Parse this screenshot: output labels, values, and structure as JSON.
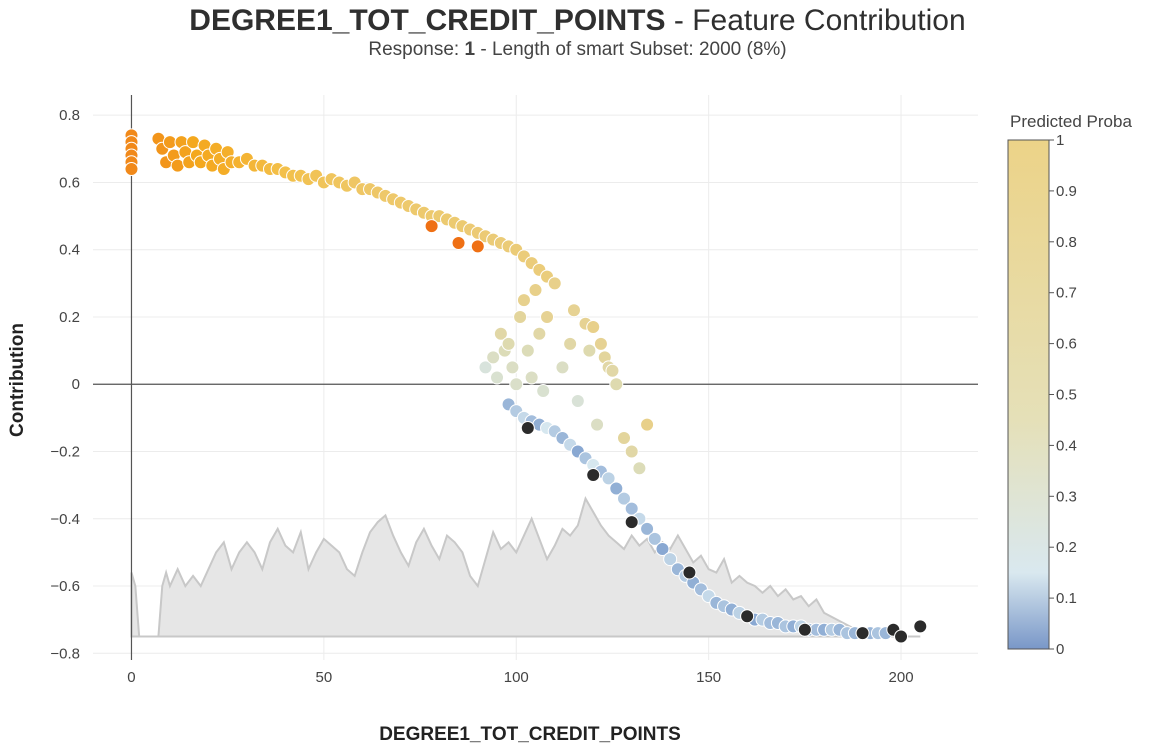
{
  "title": {
    "variable": "DEGREE1_TOT_CREDIT_POINTS",
    "suffix": " - Feature Contribution"
  },
  "subtitle": {
    "prefix": "Response: ",
    "response": "1",
    "suffix": " - Length of smart Subset: 2000 (8%)"
  },
  "chart_data": {
    "type": "scatter",
    "xlabel": "DEGREE1_TOT_CREDIT_POINTS",
    "ylabel": "Contribution",
    "xlim": [
      -10,
      220
    ],
    "ylim": [
      -0.82,
      0.86
    ],
    "xticks": [
      0,
      50,
      100,
      150,
      200
    ],
    "yticks": [
      -0.8,
      -0.6,
      -0.4,
      -0.2,
      0,
      0.2,
      0.4,
      0.6,
      0.8
    ],
    "ytick_labels": [
      "−0.8",
      "−0.6",
      "−0.4",
      "−0.2",
      "0",
      "0.2",
      "0.4",
      "0.6",
      "0.8"
    ],
    "grid": true,
    "colorbar": {
      "title": "Predicted Proba",
      "range": [
        0,
        1
      ],
      "ticks": [
        "0",
        "0.1",
        "0.2",
        "0.3",
        "0.4",
        "0.5",
        "0.6",
        "0.7",
        "0.8",
        "0.9",
        "1"
      ],
      "colors": [
        "#6b8fc6",
        "#d8e8f0",
        "#e6d38f",
        "#f0ce7a",
        "#f5a20c",
        "#f07818",
        "#2e2e2e"
      ]
    },
    "distribution_curve": {
      "description": "grey density area of the feature values",
      "x": [
        0,
        1,
        2,
        3,
        5,
        7,
        8,
        9,
        10,
        12,
        14,
        16,
        18,
        20,
        22,
        24,
        26,
        28,
        30,
        32,
        34,
        36,
        38,
        40,
        42,
        44,
        46,
        48,
        50,
        52,
        54,
        56,
        58,
        60,
        62,
        64,
        66,
        68,
        70,
        72,
        74,
        76,
        78,
        80,
        82,
        84,
        86,
        88,
        90,
        92,
        94,
        96,
        98,
        100,
        102,
        104,
        106,
        108,
        110,
        112,
        114,
        116,
        118,
        120,
        122,
        124,
        126,
        128,
        130,
        132,
        134,
        136,
        138,
        140,
        142,
        144,
        146,
        148,
        150,
        152,
        154,
        156,
        158,
        160,
        162,
        164,
        166,
        168,
        170,
        172,
        174,
        176,
        178,
        180,
        185,
        190,
        195,
        200,
        205
      ],
      "y": [
        -0.56,
        -0.6,
        -0.75,
        -0.75,
        -0.75,
        -0.75,
        -0.6,
        -0.56,
        -0.6,
        -0.55,
        -0.6,
        -0.57,
        -0.6,
        -0.55,
        -0.5,
        -0.47,
        -0.55,
        -0.5,
        -0.47,
        -0.5,
        -0.55,
        -0.47,
        -0.43,
        -0.48,
        -0.5,
        -0.44,
        -0.55,
        -0.5,
        -0.46,
        -0.48,
        -0.5,
        -0.55,
        -0.57,
        -0.5,
        -0.44,
        -0.41,
        -0.39,
        -0.45,
        -0.5,
        -0.54,
        -0.47,
        -0.43,
        -0.48,
        -0.52,
        -0.45,
        -0.47,
        -0.5,
        -0.57,
        -0.6,
        -0.52,
        -0.44,
        -0.49,
        -0.47,
        -0.5,
        -0.45,
        -0.4,
        -0.46,
        -0.52,
        -0.48,
        -0.43,
        -0.45,
        -0.42,
        -0.34,
        -0.38,
        -0.42,
        -0.45,
        -0.47,
        -0.49,
        -0.45,
        -0.48,
        -0.46,
        -0.5,
        -0.47,
        -0.49,
        -0.45,
        -0.49,
        -0.53,
        -0.51,
        -0.55,
        -0.56,
        -0.52,
        -0.59,
        -0.57,
        -0.59,
        -0.6,
        -0.62,
        -0.6,
        -0.63,
        -0.61,
        -0.64,
        -0.63,
        -0.66,
        -0.64,
        -0.68,
        -0.71,
        -0.74,
        -0.74,
        -0.75,
        -0.75
      ]
    },
    "series": [
      {
        "description": "orange / yellow points (high predicted proba, positive contributions)",
        "x": [
          0,
          0,
          0,
          0,
          0,
          0,
          7,
          8,
          9,
          10,
          11,
          12,
          13,
          14,
          15,
          16,
          17,
          18,
          19,
          20,
          21,
          22,
          23,
          24,
          25,
          26,
          28,
          30,
          32,
          34,
          36,
          38,
          40,
          42,
          44,
          46,
          48,
          50,
          52,
          54,
          56,
          58,
          60,
          62,
          64,
          66,
          68,
          70,
          72,
          74,
          76,
          78,
          80,
          82,
          84,
          86,
          88,
          90,
          92,
          94,
          96,
          98,
          100,
          102,
          104,
          106,
          108,
          110,
          78,
          85,
          90
        ],
        "y": [
          0.74,
          0.72,
          0.7,
          0.68,
          0.66,
          0.64,
          0.73,
          0.7,
          0.66,
          0.72,
          0.68,
          0.65,
          0.72,
          0.69,
          0.66,
          0.72,
          0.68,
          0.66,
          0.71,
          0.68,
          0.65,
          0.7,
          0.67,
          0.64,
          0.69,
          0.66,
          0.66,
          0.67,
          0.65,
          0.65,
          0.64,
          0.64,
          0.63,
          0.62,
          0.62,
          0.61,
          0.62,
          0.6,
          0.61,
          0.6,
          0.59,
          0.6,
          0.58,
          0.58,
          0.57,
          0.56,
          0.55,
          0.54,
          0.53,
          0.52,
          0.51,
          0.5,
          0.5,
          0.49,
          0.48,
          0.47,
          0.46,
          0.45,
          0.44,
          0.43,
          0.42,
          0.41,
          0.4,
          0.38,
          0.36,
          0.34,
          0.32,
          0.3,
          0.47,
          0.42,
          0.41
        ],
        "color_values": [
          0.95,
          0.95,
          0.95,
          0.95,
          0.95,
          0.95,
          0.93,
          0.93,
          0.93,
          0.92,
          0.92,
          0.92,
          0.91,
          0.91,
          0.91,
          0.9,
          0.9,
          0.9,
          0.89,
          0.89,
          0.89,
          0.88,
          0.88,
          0.88,
          0.87,
          0.87,
          0.86,
          0.85,
          0.84,
          0.83,
          0.82,
          0.81,
          0.8,
          0.79,
          0.78,
          0.77,
          0.76,
          0.75,
          0.74,
          0.74,
          0.73,
          0.72,
          0.72,
          0.71,
          0.71,
          0.7,
          0.7,
          0.7,
          0.69,
          0.69,
          0.69,
          0.69,
          0.68,
          0.68,
          0.68,
          0.68,
          0.67,
          0.67,
          0.67,
          0.66,
          0.66,
          0.66,
          0.66,
          0.65,
          0.65,
          0.65,
          0.64,
          0.64,
          0.99,
          0.99,
          0.99
        ]
      },
      {
        "description": "transition points (mid predicted proba)",
        "x": [
          92,
          94,
          95,
          96,
          97,
          98,
          99,
          100,
          101,
          102,
          103,
          104,
          105,
          106,
          107,
          108,
          110,
          112,
          114,
          115,
          116,
          118,
          119,
          120,
          121,
          122,
          123,
          124,
          125,
          126,
          128,
          130,
          132,
          134
        ],
        "y": [
          0.05,
          0.08,
          0.02,
          0.15,
          0.1,
          0.12,
          0.05,
          0.0,
          0.2,
          0.25,
          0.1,
          0.02,
          0.28,
          0.15,
          -0.02,
          0.2,
          0.3,
          0.05,
          0.12,
          0.22,
          -0.05,
          0.18,
          0.1,
          0.17,
          -0.12,
          0.12,
          0.08,
          0.05,
          0.04,
          0.0,
          -0.16,
          -0.2,
          -0.25,
          -0.12
        ],
        "color_values": [
          0.2,
          0.3,
          0.25,
          0.45,
          0.35,
          0.4,
          0.3,
          0.28,
          0.5,
          0.58,
          0.35,
          0.3,
          0.6,
          0.45,
          0.25,
          0.55,
          0.6,
          0.3,
          0.45,
          0.55,
          0.22,
          0.55,
          0.4,
          0.6,
          0.3,
          0.55,
          0.5,
          0.45,
          0.45,
          0.4,
          0.5,
          0.45,
          0.35,
          0.6
        ]
      },
      {
        "description": "blue / dark points (low predicted proba, negative contributions)",
        "x": [
          98,
          100,
          102,
          104,
          106,
          108,
          110,
          112,
          114,
          116,
          118,
          120,
          122,
          124,
          126,
          128,
          130,
          132,
          134,
          136,
          138,
          140,
          142,
          144,
          146,
          148,
          150,
          152,
          154,
          156,
          158,
          160,
          162,
          164,
          166,
          168,
          170,
          172,
          174,
          176,
          178,
          180,
          182,
          184,
          186,
          188,
          190,
          192,
          194,
          196,
          198,
          200,
          205,
          103,
          120,
          130,
          145,
          160,
          175,
          190
        ],
        "y": [
          -0.06,
          -0.08,
          -0.1,
          -0.11,
          -0.12,
          -0.13,
          -0.14,
          -0.16,
          -0.18,
          -0.2,
          -0.22,
          -0.24,
          -0.26,
          -0.28,
          -0.31,
          -0.34,
          -0.37,
          -0.4,
          -0.43,
          -0.46,
          -0.49,
          -0.52,
          -0.55,
          -0.57,
          -0.59,
          -0.61,
          -0.63,
          -0.65,
          -0.66,
          -0.67,
          -0.68,
          -0.69,
          -0.7,
          -0.7,
          -0.71,
          -0.71,
          -0.72,
          -0.72,
          -0.72,
          -0.73,
          -0.73,
          -0.73,
          -0.73,
          -0.73,
          -0.74,
          -0.74,
          -0.74,
          -0.74,
          -0.74,
          -0.74,
          -0.73,
          -0.75,
          -0.72,
          -0.13,
          -0.27,
          -0.41,
          -0.56,
          -0.69,
          -0.73,
          -0.74
        ],
        "color_values": [
          0.05,
          0.08,
          0.1,
          0.06,
          0.04,
          0.12,
          0.08,
          0.05,
          0.1,
          0.03,
          0.07,
          0.12,
          0.06,
          0.09,
          0.04,
          0.08,
          0.06,
          0.1,
          0.05,
          0.07,
          0.03,
          0.09,
          0.05,
          0.08,
          0.04,
          0.06,
          0.1,
          0.05,
          0.07,
          0.04,
          0.09,
          0.05,
          0.03,
          0.08,
          0.06,
          0.05,
          0.07,
          0.04,
          0.09,
          0.05,
          0.06,
          0.04,
          0.08,
          0.05,
          0.07,
          0.05,
          0.06,
          0.05,
          0.07,
          0.05,
          -1,
          -1,
          -1,
          -1,
          -1,
          -1,
          -1,
          -1,
          -1,
          -1
        ]
      }
    ]
  }
}
